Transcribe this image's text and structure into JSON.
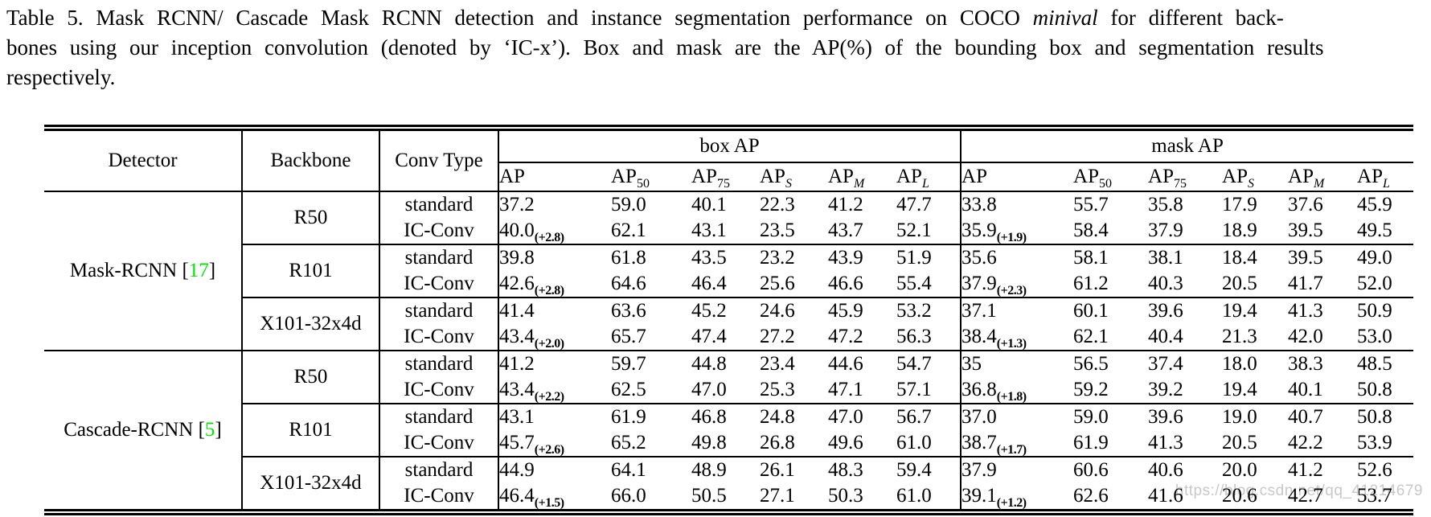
{
  "caption": {
    "line1": [
      {
        "t": "Table 5. Mask RCNN/ Cascade Mask RCNN detection and instance segmentation performance on COCO "
      },
      {
        "t": "minival",
        "i": true
      },
      {
        "t": " for different back-"
      }
    ],
    "line2": "bones using our inception convolution (denoted by ‘IC-x’). Box and mask are the AP(%) of the bounding box and segmentation results",
    "line3": "respectively."
  },
  "table": {
    "columns": {
      "detector": "Detector",
      "backbone": "Backbone",
      "conv": "Conv Type"
    },
    "groups": [
      {
        "label": "box AP"
      },
      {
        "label": "mask AP"
      }
    ],
    "metric_headers": [
      {
        "base": "AP",
        "sub": ""
      },
      {
        "base": "AP",
        "sub": "50",
        "it": false
      },
      {
        "base": "AP",
        "sub": "75",
        "it": false
      },
      {
        "base": "AP",
        "sub": "S",
        "it": true
      },
      {
        "base": "AP",
        "sub": "M",
        "it": true
      },
      {
        "base": "AP",
        "sub": "L",
        "it": true
      }
    ],
    "detectors": [
      {
        "name": "Mask-RCNN",
        "ref": "17",
        "backbones": [
          {
            "name": "R50",
            "rows": [
              {
                "conv": "standard",
                "values": [
                  "37.2",
                  "59.0",
                  "40.1",
                  "22.3",
                  "41.2",
                  "47.7",
                  "33.8",
                  "55.7",
                  "35.8",
                  "17.9",
                  "37.6",
                  "45.9"
                ]
              },
              {
                "conv": "IC-Conv",
                "values": [
                  {
                    "v": "40.0",
                    "g": "+2.8"
                  },
                  "62.1",
                  "43.1",
                  "23.5",
                  "43.7",
                  "52.1",
                  {
                    "v": "35.9",
                    "g": "+1.9"
                  },
                  "58.4",
                  "37.9",
                  "18.9",
                  "39.5",
                  "49.5"
                ]
              }
            ]
          },
          {
            "name": "R101",
            "rows": [
              {
                "conv": "standard",
                "values": [
                  "39.8",
                  "61.8",
                  "43.5",
                  "23.2",
                  "43.9",
                  "51.9",
                  "35.6",
                  "58.1",
                  "38.1",
                  "18.4",
                  "39.5",
                  "49.0"
                ]
              },
              {
                "conv": "IC-Conv",
                "values": [
                  {
                    "v": "42.6",
                    "g": "+2.8"
                  },
                  "64.6",
                  "46.4",
                  "25.6",
                  "46.6",
                  "55.4",
                  {
                    "v": "37.9",
                    "g": "+2.3"
                  },
                  "61.2",
                  "40.3",
                  "20.5",
                  "41.7",
                  "52.0"
                ]
              }
            ]
          },
          {
            "name": "X101-32x4d",
            "rows": [
              {
                "conv": "standard",
                "values": [
                  "41.4",
                  "63.6",
                  "45.2",
                  "24.6",
                  "45.9",
                  "53.2",
                  "37.1",
                  "60.1",
                  "39.6",
                  "19.4",
                  "41.3",
                  "50.9"
                ]
              },
              {
                "conv": "IC-Conv",
                "values": [
                  {
                    "v": "43.4",
                    "g": "+2.0"
                  },
                  "65.7",
                  "47.4",
                  "27.2",
                  "47.2",
                  "56.3",
                  {
                    "v": "38.4",
                    "g": "+1.3"
                  },
                  "62.1",
                  "40.4",
                  "21.3",
                  "42.0",
                  "53.0"
                ]
              }
            ]
          }
        ]
      },
      {
        "name": "Cascade-RCNN",
        "ref": "5",
        "backbones": [
          {
            "name": "R50",
            "rows": [
              {
                "conv": "standard",
                "values": [
                  "41.2",
                  "59.7",
                  "44.8",
                  "23.4",
                  "44.6",
                  "54.7",
                  "35",
                  "56.5",
                  "37.4",
                  "18.0",
                  "38.3",
                  "48.5"
                ]
              },
              {
                "conv": "IC-Conv",
                "values": [
                  {
                    "v": "43.4",
                    "g": "+2.2"
                  },
                  "62.5",
                  "47.0",
                  "25.3",
                  "47.1",
                  "57.1",
                  {
                    "v": "36.8",
                    "g": "+1.8"
                  },
                  "59.2",
                  "39.2",
                  "19.4",
                  "40.1",
                  "50.8"
                ]
              }
            ]
          },
          {
            "name": "R101",
            "rows": [
              {
                "conv": "standard",
                "values": [
                  "43.1",
                  "61.9",
                  "46.8",
                  "24.8",
                  "47.0",
                  "56.7",
                  "37.0",
                  "59.0",
                  "39.6",
                  "19.0",
                  "40.7",
                  "50.8"
                ]
              },
              {
                "conv": "IC-Conv",
                "values": [
                  {
                    "v": "45.7",
                    "g": "+2.6"
                  },
                  "65.2",
                  "49.8",
                  "26.8",
                  "49.6",
                  "61.0",
                  {
                    "v": "38.7",
                    "g": "+1.7"
                  },
                  "61.9",
                  "41.3",
                  "20.5",
                  "42.2",
                  "53.9"
                ]
              }
            ]
          },
          {
            "name": "X101-32x4d",
            "rows": [
              {
                "conv": "standard",
                "values": [
                  "44.9",
                  "64.1",
                  "48.9",
                  "26.1",
                  "48.3",
                  "59.4",
                  "37.9",
                  "60.6",
                  "40.6",
                  "20.0",
                  "41.2",
                  "52.6"
                ]
              },
              {
                "conv": "IC-Conv",
                "values": [
                  {
                    "v": "46.4",
                    "g": "+1.5"
                  },
                  "66.0",
                  "50.5",
                  "27.1",
                  "50.3",
                  "61.0",
                  {
                    "v": "39.1",
                    "g": "+1.2"
                  },
                  "62.6",
                  "41.6",
                  "20.6",
                  "42.7",
                  "53.7"
                ]
              }
            ]
          }
        ]
      }
    ]
  },
  "watermark": "https://blog.csdn.net/qq_41214679",
  "colors": {
    "ref_green": "#00e400",
    "watermark_gray": "#c8c8c8",
    "rule_black": "#000000"
  }
}
